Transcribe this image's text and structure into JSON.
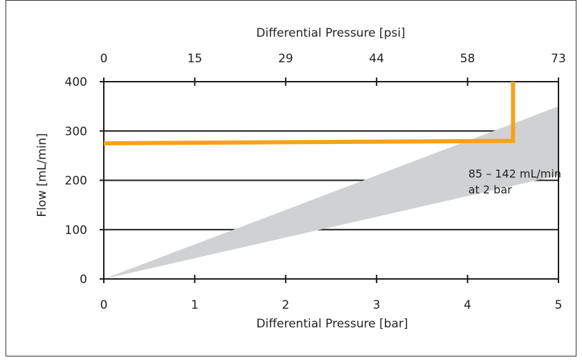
{
  "chart_data": {
    "type": "line",
    "xlabel": "Differential Pressure [bar]",
    "x2label": "Differential Pressure [psi]",
    "ylabel": "Flow [mL/min]",
    "xlim": [
      0,
      5
    ],
    "ylim": [
      0,
      400
    ],
    "x_ticks": [
      "0",
      "1",
      "2",
      "3",
      "4",
      "5"
    ],
    "x2_ticks": [
      "0",
      "15",
      "29",
      "44",
      "58",
      "73"
    ],
    "y_ticks": [
      "0",
      "100",
      "200",
      "300",
      "400"
    ],
    "grid": "horizontal",
    "series": [
      {
        "color": "#f7a21b",
        "points": [
          [
            0,
            275
          ],
          [
            4.5,
            280
          ],
          [
            4.5,
            400
          ]
        ]
      }
    ],
    "band": {
      "color": "#d0d1d2",
      "upper": [
        [
          0,
          0
        ],
        [
          5,
          350
        ]
      ],
      "lower": [
        [
          0,
          0
        ],
        [
          5,
          210
        ]
      ]
    },
    "annotation": {
      "lines": [
        "85 – 142 mL/min",
        "at 2 bar"
      ],
      "at": [
        3.4,
        220
      ]
    }
  }
}
